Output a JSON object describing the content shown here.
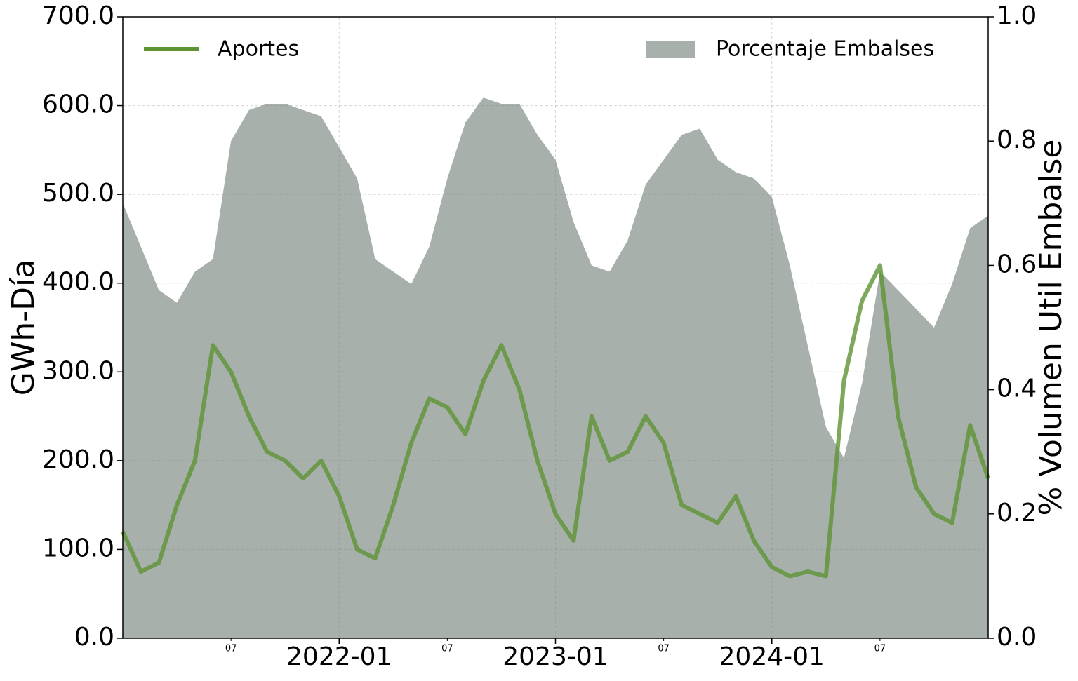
{
  "chart_data": {
    "type": "line",
    "x": [
      "2021-01",
      "2021-02",
      "2021-03",
      "2021-04",
      "2021-05",
      "2021-06",
      "2021-07",
      "2021-08",
      "2021-09",
      "2021-10",
      "2021-11",
      "2021-12",
      "2022-01",
      "2022-02",
      "2022-03",
      "2022-04",
      "2022-05",
      "2022-06",
      "2022-07",
      "2022-08",
      "2022-09",
      "2022-10",
      "2022-11",
      "2022-12",
      "2023-01",
      "2023-02",
      "2023-03",
      "2023-04",
      "2023-05",
      "2023-06",
      "2023-07",
      "2023-08",
      "2023-09",
      "2023-10",
      "2023-11",
      "2023-12",
      "2024-01",
      "2024-02",
      "2024-03",
      "2024-04",
      "2024-05",
      "2024-06",
      "2024-07",
      "2024-08",
      "2024-09",
      "2024-10",
      "2024-11",
      "2024-12",
      "2025-01"
    ],
    "series": [
      {
        "name": "Porcentaje Embalses",
        "type": "area",
        "axis": "y2",
        "color": "#a7b0ab",
        "legend_loc": "upper right",
        "values": [
          0.7,
          0.63,
          0.56,
          0.54,
          0.59,
          0.61,
          0.8,
          0.85,
          0.86,
          0.86,
          0.85,
          0.84,
          0.79,
          0.74,
          0.61,
          0.59,
          0.57,
          0.63,
          0.74,
          0.83,
          0.87,
          0.86,
          0.86,
          0.81,
          0.77,
          0.67,
          0.6,
          0.59,
          0.64,
          0.73,
          0.77,
          0.81,
          0.82,
          0.77,
          0.75,
          0.74,
          0.71,
          0.6,
          0.47,
          0.34,
          0.29,
          0.41,
          0.59,
          0.56,
          0.53,
          0.5,
          0.57,
          0.66,
          0.68
        ]
      },
      {
        "name": "Aportes",
        "type": "line",
        "axis": "y",
        "color": "#5e9434",
        "legend_loc": "upper left",
        "values": [
          120,
          75,
          85,
          150,
          200,
          330,
          300,
          250,
          210,
          200,
          180,
          200,
          160,
          100,
          90,
          150,
          220,
          270,
          260,
          230,
          290,
          330,
          280,
          200,
          140,
          110,
          250,
          200,
          210,
          250,
          220,
          150,
          140,
          130,
          160,
          110,
          80,
          70,
          75,
          70,
          290,
          380,
          420,
          250,
          170,
          140,
          130,
          240,
          180
        ]
      }
    ],
    "xlim": [
      "2021-01",
      "2025-01"
    ],
    "xticks": [
      "2022-01",
      "2023-01",
      "2024-01"
    ],
    "xticks_minor": [
      {
        "value": "2021-07",
        "label": "07"
      },
      {
        "value": "2022-07",
        "label": "07"
      },
      {
        "value": "2023-07",
        "label": "07"
      },
      {
        "value": "2024-07",
        "label": "07"
      }
    ],
    "ylim": [
      0,
      700
    ],
    "yticks": [
      {
        "value": 0,
        "label": "0.0"
      },
      {
        "value": 100,
        "label": "100.0"
      },
      {
        "value": 200,
        "label": "200.0"
      },
      {
        "value": 300,
        "label": "300.0"
      },
      {
        "value": 400,
        "label": "400.0"
      },
      {
        "value": 500,
        "label": "500.0"
      },
      {
        "value": 600,
        "label": "600.0"
      },
      {
        "value": 700,
        "label": "700.0"
      }
    ],
    "y2lim": [
      0,
      1
    ],
    "y2ticks": [
      {
        "value": 0,
        "label": "0.0"
      },
      0.2,
      0.4,
      0.6,
      0.8,
      {
        "value": 1,
        "label": "1.0"
      }
    ],
    "ylabel": "GWh-Día",
    "y2label": "% Volumen Util Embalse",
    "grid": true
  }
}
